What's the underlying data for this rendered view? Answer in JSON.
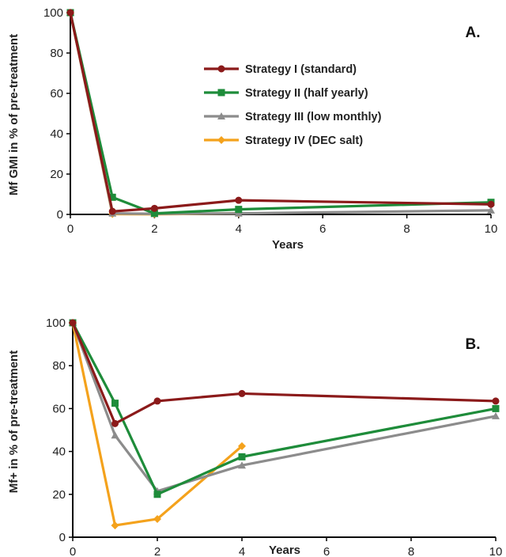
{
  "chart_data": [
    {
      "type": "line",
      "panel_label": "A.",
      "xlabel": "Years",
      "ylabel": "Mf GMI in % of pre-treatment",
      "xlim": [
        0,
        10
      ],
      "ylim": [
        0,
        100
      ],
      "xticks": [
        "0",
        "2",
        "4",
        "6",
        "8",
        "10"
      ],
      "yticks": [
        "0",
        "20",
        "40",
        "60",
        "80",
        "100"
      ],
      "grid": false,
      "legend_position": "top-right",
      "series": [
        {
          "name": "Strategy I (standard)",
          "color": "#8B1A1A",
          "marker": "circle",
          "x": [
            0,
            1,
            2,
            4,
            10
          ],
          "y": [
            100,
            1.5,
            3,
            7,
            5
          ]
        },
        {
          "name": "Strategy II (half yearly)",
          "color": "#1E8C3A",
          "marker": "square",
          "x": [
            0,
            1,
            2,
            4,
            10
          ],
          "y": [
            100,
            8.5,
            0.5,
            2.5,
            6
          ]
        },
        {
          "name": "Strategy III (low monthly)",
          "color": "#8C8C8C",
          "marker": "triangle",
          "x": [
            0,
            1,
            2,
            4,
            10
          ],
          "y": [
            100,
            0.5,
            0.3,
            0.5,
            2
          ]
        },
        {
          "name": "Strategy IV (DEC salt)",
          "color": "#F4A21C",
          "marker": "diamond",
          "x": [
            0,
            1,
            2,
            4
          ],
          "y": [
            100,
            0.2,
            0.1,
            0.5
          ]
        }
      ]
    },
    {
      "type": "line",
      "panel_label": "B.",
      "xlabel": "Years",
      "ylabel": "Mf+ in % of pre-treatment",
      "xlim": [
        0,
        10
      ],
      "ylim": [
        0,
        100
      ],
      "xticks": [
        "0",
        "2",
        "4",
        "6",
        "8",
        "10"
      ],
      "yticks": [
        "0",
        "20",
        "40",
        "60",
        "80",
        "100"
      ],
      "grid": false,
      "series": [
        {
          "name": "Strategy I (standard)",
          "color": "#8B1A1A",
          "marker": "circle",
          "x": [
            0,
            1,
            2,
            4,
            10
          ],
          "y": [
            100,
            53,
            63.5,
            67,
            63.5
          ]
        },
        {
          "name": "Strategy II (half yearly)",
          "color": "#1E8C3A",
          "marker": "square",
          "x": [
            0,
            1,
            2,
            4,
            10
          ],
          "y": [
            100,
            62.5,
            20,
            37.5,
            60
          ]
        },
        {
          "name": "Strategy III (low monthly)",
          "color": "#8C8C8C",
          "marker": "triangle",
          "x": [
            0,
            1,
            2,
            4,
            10
          ],
          "y": [
            100,
            47.5,
            21.5,
            33.5,
            56.5
          ]
        },
        {
          "name": "Strategy IV (DEC salt)",
          "color": "#F4A21C",
          "marker": "diamond",
          "x": [
            0,
            1,
            2,
            4
          ],
          "y": [
            100,
            5.5,
            8.5,
            42.5
          ]
        }
      ]
    }
  ]
}
